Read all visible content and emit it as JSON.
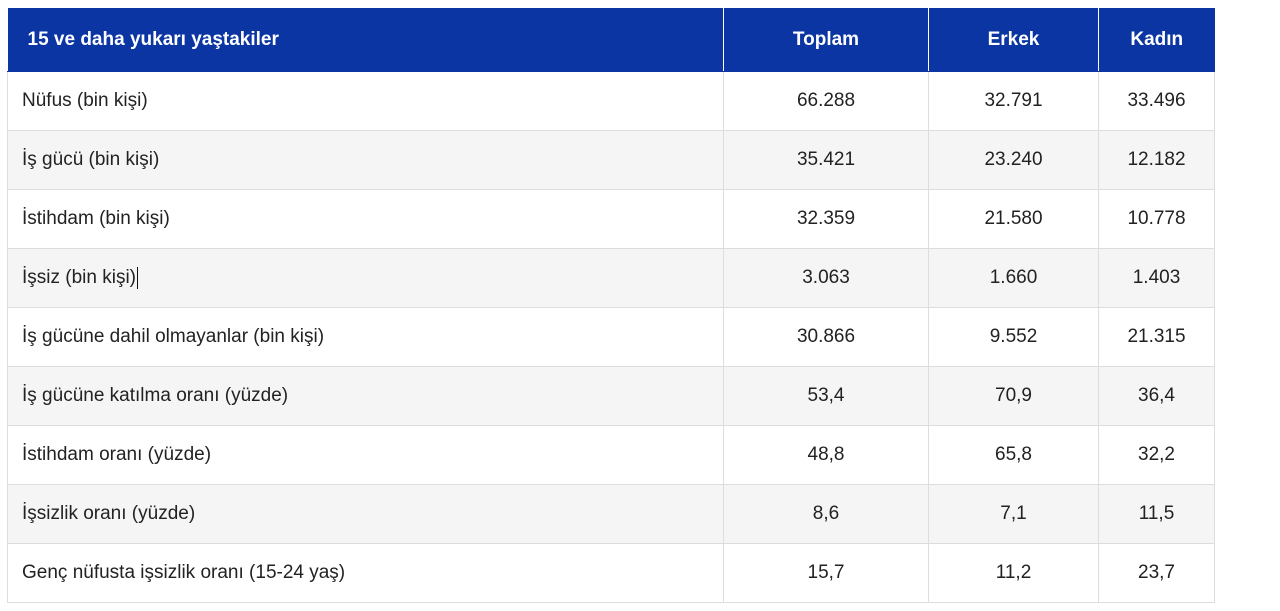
{
  "header": {
    "label": "15 ve daha yukarı yaştakiler",
    "total": "Toplam",
    "male": "Erkek",
    "female": "Kadın"
  },
  "rows": [
    {
      "label": "Nüfus (bin kişi)",
      "total": "66.288",
      "male": "32.791",
      "female": "33.496"
    },
    {
      "label": "İş gücü (bin kişi)",
      "total": "35.421",
      "male": "23.240",
      "female": "12.182"
    },
    {
      "label": "İstihdam (bin kişi)",
      "total": "32.359",
      "male": "21.580",
      "female": "10.778"
    },
    {
      "label": "İşsiz (bin kişi)",
      "total": "3.063",
      "male": "1.660",
      "female": "1.403"
    },
    {
      "label": "İş gücüne dahil olmayanlar (bin kişi)",
      "total": "30.866",
      "male": "9.552",
      "female": "21.315"
    },
    {
      "label": "İş gücüne katılma oranı (yüzde)",
      "total": "53,4",
      "male": "70,9",
      "female": "36,4"
    },
    {
      "label": "İstihdam oranı (yüzde)",
      "total": "48,8",
      "male": "65,8",
      "female": "32,2"
    },
    {
      "label": "İşsizlik oranı (yüzde)",
      "total": "8,6",
      "male": "7,1",
      "female": "11,5"
    },
    {
      "label": "Genç nüfusta işsizlik oranı (15-24 yaş)",
      "total": "15,7",
      "male": "11,2",
      "female": "23,7"
    }
  ],
  "colors": {
    "header_bg": "#0a35a3",
    "header_text": "#ffffff",
    "row_alt_bg": "#f5f5f5",
    "border": "#dddddd"
  }
}
